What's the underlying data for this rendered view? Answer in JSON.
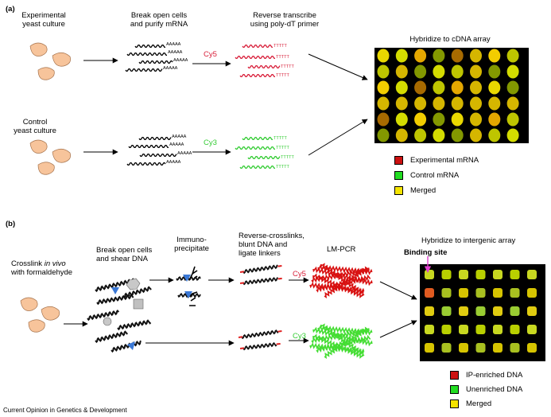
{
  "panel_a": {
    "label": "(a)",
    "experimental_label": "Experimental\nyeast culture",
    "control_label": "Control\nyeast culture",
    "step1": "Break open cells\nand purify mRNA",
    "step2": "Reverse transcribe\nusing poly-dT primer",
    "step3": "Hybridize to cDNA array",
    "dye_exp": "Cy5",
    "dye_ctrl": "Cy3",
    "polyA": "AAAAA",
    "polyT": "TTTTT",
    "legend": [
      {
        "label": "Experimental mRNA",
        "color": "#cc1111"
      },
      {
        "label": "Control mRNA",
        "color": "#22dd22"
      },
      {
        "label": "Merged",
        "color": "#f5e400"
      }
    ]
  },
  "panel_b": {
    "label": "(b)",
    "crosslink_prefix": "Crosslink ",
    "crosslink_italic": "in vivo",
    "crosslink_rest": "with formaldehyde",
    "step1": "Break open cells\nand shear DNA",
    "step2": "Immuno-\nprecipitate",
    "step3": "Reverse-crosslinks,\nblunt DNA and\nligate linkers",
    "step4": "LM-PCR",
    "step5": "Hybridize to intergenic array",
    "binding_site": "Binding site",
    "dye_ip": "Cy5",
    "dye_un": "Cy3",
    "legend": [
      {
        "label": "IP-enriched DNA",
        "color": "#cc1111"
      },
      {
        "label": "Unenriched DNA",
        "color": "#22dd22"
      },
      {
        "label": "Merged",
        "color": "#f5e400"
      }
    ]
  },
  "footer": "Current Opinion in Genetics & Development",
  "colors": {
    "cell": "#f7c49b",
    "red": "#d81f3a",
    "green": "#33cc33",
    "blue": "#3a78d6"
  }
}
